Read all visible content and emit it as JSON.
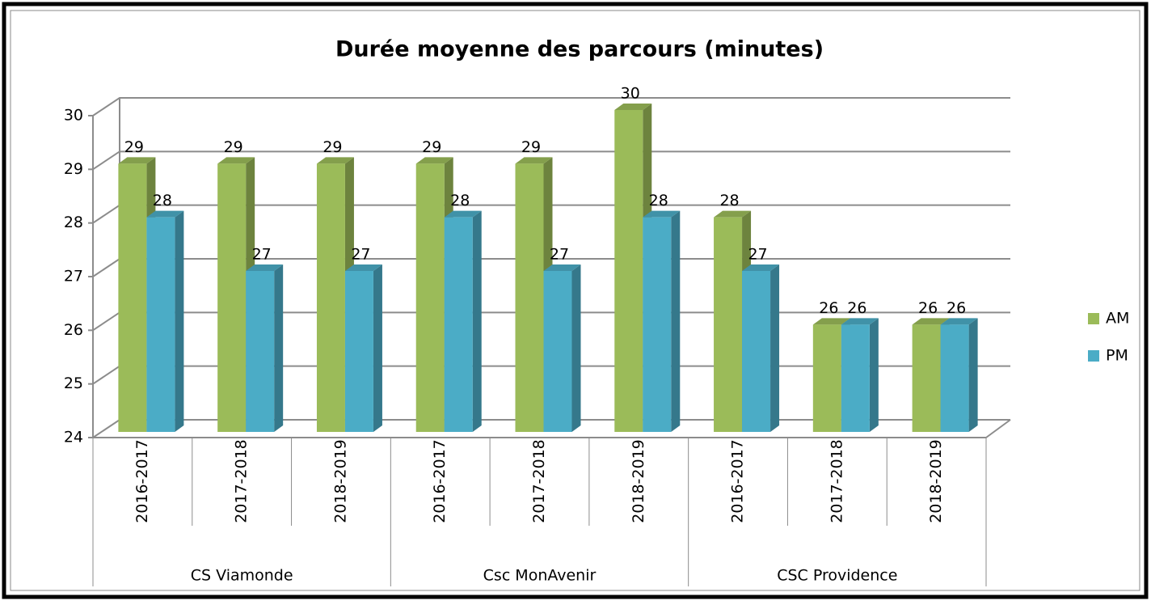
{
  "chart_data": {
    "type": "bar3d",
    "title": "Durée moyenne des parcours (minutes)",
    "groups": [
      {
        "label": "CS Viamonde",
        "categories": [
          "2016-2017",
          "2017-2018",
          "2018-2019"
        ]
      },
      {
        "label": "Csc MonAvenir",
        "categories": [
          "2016-2017",
          "2017-2018",
          "2018-2019"
        ]
      },
      {
        "label": "CSC Providence",
        "categories": [
          "2016-2017",
          "2017-2018",
          "2018-2019"
        ]
      }
    ],
    "series": [
      {
        "name": "AM",
        "color": "#9bbb59",
        "values": [
          29,
          29,
          29,
          29,
          29,
          30,
          28,
          26,
          26
        ]
      },
      {
        "name": "PM",
        "color": "#4bacc6",
        "values": [
          28,
          27,
          27,
          28,
          27,
          28,
          27,
          26,
          26
        ]
      }
    ],
    "ylim": [
      24,
      30
    ],
    "yticks": [
      24,
      25,
      26,
      27,
      28,
      29,
      30
    ],
    "grid": true,
    "legend": "right"
  }
}
